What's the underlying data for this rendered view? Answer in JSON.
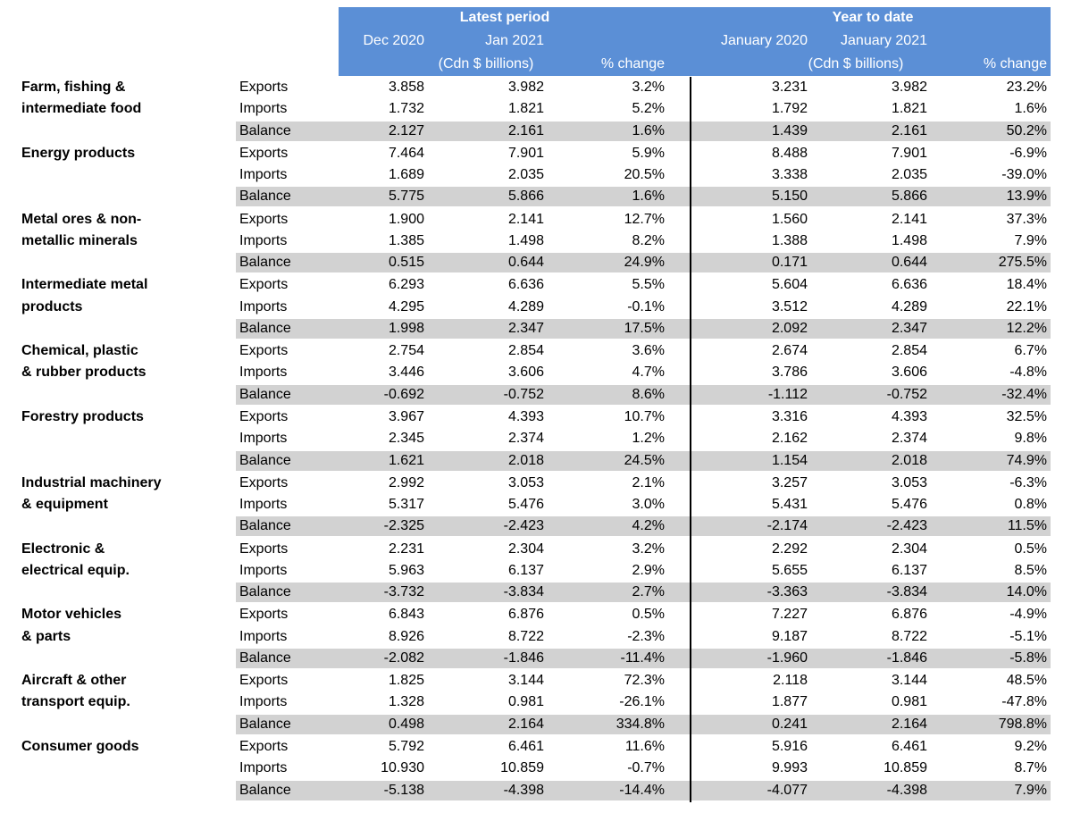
{
  "header": {
    "latest_period": "Latest period",
    "year_to_date": "Year to date",
    "col_dec2020": "Dec 2020",
    "col_jan2021": "Jan 2021",
    "units_left": "(Cdn $ billions)",
    "pct_change_left": "% change",
    "col_jan2020_ytd": "January 2020",
    "col_jan2021_ytd": "January 2021",
    "units_right": "(Cdn $ billions)",
    "pct_change_right": "% change"
  },
  "colors": {
    "header_bg": "#5b8fd6",
    "balance_row_bg": "#d2d2d2"
  },
  "groups": [
    {
      "category": [
        "Farm, fishing &",
        "intermediate food"
      ],
      "rows": [
        {
          "label": "Exports",
          "v": [
            "3.858",
            "3.982",
            "3.2%",
            "3.231",
            "3.982",
            "23.2%"
          ]
        },
        {
          "label": "Imports",
          "v": [
            "1.732",
            "1.821",
            "5.2%",
            "1.792",
            "1.821",
            "1.6%"
          ]
        },
        {
          "label": "Balance",
          "v": [
            "2.127",
            "2.161",
            "1.6%",
            "1.439",
            "2.161",
            "50.2%"
          ]
        }
      ]
    },
    {
      "category": [
        "Energy products"
      ],
      "rows": [
        {
          "label": "Exports",
          "v": [
            "7.464",
            "7.901",
            "5.9%",
            "8.488",
            "7.901",
            "-6.9%"
          ]
        },
        {
          "label": "Imports",
          "v": [
            "1.689",
            "2.035",
            "20.5%",
            "3.338",
            "2.035",
            "-39.0%"
          ]
        },
        {
          "label": "Balance",
          "v": [
            "5.775",
            "5.866",
            "1.6%",
            "5.150",
            "5.866",
            "13.9%"
          ]
        }
      ]
    },
    {
      "category": [
        "Metal ores & non-",
        "metallic minerals"
      ],
      "rows": [
        {
          "label": "Exports",
          "v": [
            "1.900",
            "2.141",
            "12.7%",
            "1.560",
            "2.141",
            "37.3%"
          ]
        },
        {
          "label": "Imports",
          "v": [
            "1.385",
            "1.498",
            "8.2%",
            "1.388",
            "1.498",
            "7.9%"
          ]
        },
        {
          "label": "Balance",
          "v": [
            "0.515",
            "0.644",
            "24.9%",
            "0.171",
            "0.644",
            "275.5%"
          ]
        }
      ]
    },
    {
      "category": [
        "Intermediate metal",
        "products"
      ],
      "rows": [
        {
          "label": "Exports",
          "v": [
            "6.293",
            "6.636",
            "5.5%",
            "5.604",
            "6.636",
            "18.4%"
          ]
        },
        {
          "label": "Imports",
          "v": [
            "4.295",
            "4.289",
            "-0.1%",
            "3.512",
            "4.289",
            "22.1%"
          ]
        },
        {
          "label": "Balance",
          "v": [
            "1.998",
            "2.347",
            "17.5%",
            "2.092",
            "2.347",
            "12.2%"
          ]
        }
      ]
    },
    {
      "category": [
        "Chemical, plastic",
        "& rubber products"
      ],
      "rows": [
        {
          "label": "Exports",
          "v": [
            "2.754",
            "2.854",
            "3.6%",
            "2.674",
            "2.854",
            "6.7%"
          ]
        },
        {
          "label": "Imports",
          "v": [
            "3.446",
            "3.606",
            "4.7%",
            "3.786",
            "3.606",
            "-4.8%"
          ]
        },
        {
          "label": "Balance",
          "v": [
            "-0.692",
            "-0.752",
            "8.6%",
            "-1.112",
            "-0.752",
            "-32.4%"
          ]
        }
      ]
    },
    {
      "category": [
        "Forestry products"
      ],
      "rows": [
        {
          "label": "Exports",
          "v": [
            "3.967",
            "4.393",
            "10.7%",
            "3.316",
            "4.393",
            "32.5%"
          ]
        },
        {
          "label": "Imports",
          "v": [
            "2.345",
            "2.374",
            "1.2%",
            "2.162",
            "2.374",
            "9.8%"
          ]
        },
        {
          "label": "Balance",
          "v": [
            "1.621",
            "2.018",
            "24.5%",
            "1.154",
            "2.018",
            "74.9%"
          ]
        }
      ]
    },
    {
      "category": [
        "Industrial machinery",
        "& equipment"
      ],
      "rows": [
        {
          "label": "Exports",
          "v": [
            "2.992",
            "3.053",
            "2.1%",
            "3.257",
            "3.053",
            "-6.3%"
          ]
        },
        {
          "label": "Imports",
          "v": [
            "5.317",
            "5.476",
            "3.0%",
            "5.431",
            "5.476",
            "0.8%"
          ]
        },
        {
          "label": "Balance",
          "v": [
            "-2.325",
            "-2.423",
            "4.2%",
            "-2.174",
            "-2.423",
            "11.5%"
          ]
        }
      ]
    },
    {
      "category": [
        "Electronic &",
        "electrical equip."
      ],
      "rows": [
        {
          "label": "Exports",
          "v": [
            "2.231",
            "2.304",
            "3.2%",
            "2.292",
            "2.304",
            "0.5%"
          ]
        },
        {
          "label": "Imports",
          "v": [
            "5.963",
            "6.137",
            "2.9%",
            "5.655",
            "6.137",
            "8.5%"
          ]
        },
        {
          "label": "Balance",
          "v": [
            "-3.732",
            "-3.834",
            "2.7%",
            "-3.363",
            "-3.834",
            "14.0%"
          ]
        }
      ]
    },
    {
      "category": [
        "Motor vehicles",
        "& parts"
      ],
      "rows": [
        {
          "label": "Exports",
          "v": [
            "6.843",
            "6.876",
            "0.5%",
            "7.227",
            "6.876",
            "-4.9%"
          ]
        },
        {
          "label": "Imports",
          "v": [
            "8.926",
            "8.722",
            "-2.3%",
            "9.187",
            "8.722",
            "-5.1%"
          ]
        },
        {
          "label": "Balance",
          "v": [
            "-2.082",
            "-1.846",
            "-11.4%",
            "-1.960",
            "-1.846",
            "-5.8%"
          ]
        }
      ]
    },
    {
      "category": [
        "Aircraft & other",
        "transport equip."
      ],
      "rows": [
        {
          "label": "Exports",
          "v": [
            "1.825",
            "3.144",
            "72.3%",
            "2.118",
            "3.144",
            "48.5%"
          ]
        },
        {
          "label": "Imports",
          "v": [
            "1.328",
            "0.981",
            "-26.1%",
            "1.877",
            "0.981",
            "-47.8%"
          ]
        },
        {
          "label": "Balance",
          "v": [
            "0.498",
            "2.164",
            "334.8%",
            "0.241",
            "2.164",
            "798.8%"
          ]
        }
      ]
    },
    {
      "category": [
        "Consumer goods"
      ],
      "rows": [
        {
          "label": "Exports",
          "v": [
            "5.792",
            "6.461",
            "11.6%",
            "5.916",
            "6.461",
            "9.2%"
          ]
        },
        {
          "label": "Imports",
          "v": [
            "10.930",
            "10.859",
            "-0.7%",
            "9.993",
            "10.859",
            "8.7%"
          ]
        },
        {
          "label": "Balance",
          "v": [
            "-5.138",
            "-4.398",
            "-14.4%",
            "-4.077",
            "-4.398",
            "7.9%"
          ]
        }
      ]
    }
  ]
}
